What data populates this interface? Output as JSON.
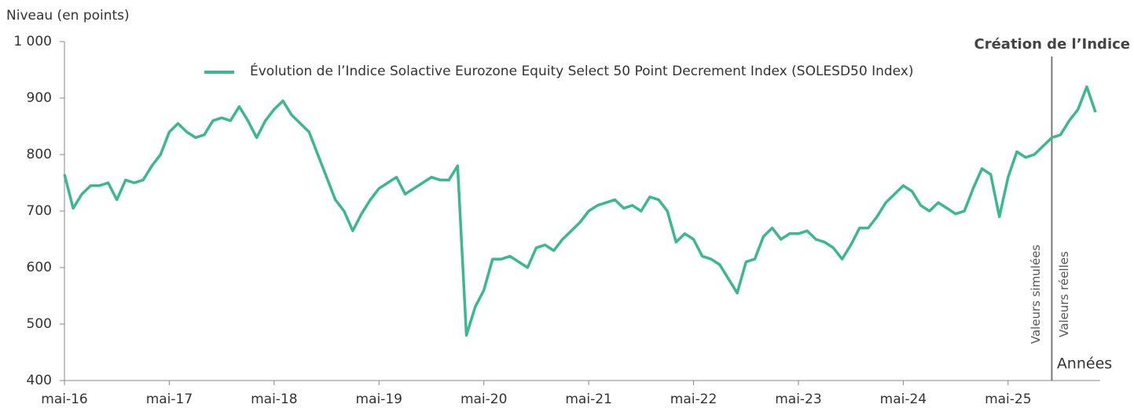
{
  "chart_data": {
    "type": "line",
    "ylabel": "Niveau (en points)",
    "xlabel": "Années",
    "ylim": [
      400,
      1000
    ],
    "yticks": [
      {
        "value": 1000,
        "label": "1 000"
      },
      900,
      800,
      700,
      600,
      500,
      400
    ],
    "xlim": [
      "2016-05",
      "2026-03"
    ],
    "xticks": [
      {
        "value": "2016-05",
        "label": "mai-16"
      },
      {
        "value": "2017-05",
        "label": "mai-17"
      },
      {
        "value": "2018-05",
        "label": "mai-18"
      },
      {
        "value": "2019-05",
        "label": "mai-19"
      },
      {
        "value": "2020-05",
        "label": "mai-20"
      },
      {
        "value": "2021-05",
        "label": "mai-21"
      },
      {
        "value": "2022-05",
        "label": "mai-22"
      },
      {
        "value": "2023-05",
        "label": "mai-23"
      },
      {
        "value": "2024-05",
        "label": "mai-24"
      },
      {
        "value": "2025-05",
        "label": "mai-25"
      }
    ],
    "annotation": {
      "x": "2025-10",
      "label": "Création de l’Indice",
      "left_label": "Valeurs simulées",
      "right_label": "Valeurs réelles"
    },
    "x": [
      "2016-05",
      "2016-06",
      "2016-07",
      "2016-08",
      "2016-09",
      "2016-10",
      "2016-11",
      "2016-12",
      "2017-01",
      "2017-02",
      "2017-03",
      "2017-04",
      "2017-05",
      "2017-06",
      "2017-07",
      "2017-08",
      "2017-09",
      "2017-10",
      "2017-11",
      "2017-12",
      "2018-01",
      "2018-02",
      "2018-03",
      "2018-04",
      "2018-05",
      "2018-06",
      "2018-07",
      "2018-08",
      "2018-09",
      "2018-10",
      "2018-11",
      "2018-12",
      "2019-01",
      "2019-02",
      "2019-03",
      "2019-04",
      "2019-05",
      "2019-06",
      "2019-07",
      "2019-08",
      "2019-09",
      "2019-10",
      "2019-11",
      "2019-12",
      "2020-01",
      "2020-02",
      "2020-03",
      "2020-04",
      "2020-05",
      "2020-06",
      "2020-07",
      "2020-08",
      "2020-09",
      "2020-10",
      "2020-11",
      "2020-12",
      "2021-01",
      "2021-02",
      "2021-03",
      "2021-04",
      "2021-05",
      "2021-06",
      "2021-07",
      "2021-08",
      "2021-09",
      "2021-10",
      "2021-11",
      "2021-12",
      "2022-01",
      "2022-02",
      "2022-03",
      "2022-04",
      "2022-05",
      "2022-06",
      "2022-07",
      "2022-08",
      "2022-09",
      "2022-10",
      "2022-11",
      "2022-12",
      "2023-01",
      "2023-02",
      "2023-03",
      "2023-04",
      "2023-05",
      "2023-06",
      "2023-07",
      "2023-08",
      "2023-09",
      "2023-10",
      "2023-11",
      "2023-12",
      "2024-01",
      "2024-02",
      "2024-03",
      "2024-04",
      "2024-05",
      "2024-06",
      "2024-07",
      "2024-08",
      "2024-09",
      "2024-10",
      "2024-11",
      "2024-12",
      "2025-01",
      "2025-02",
      "2025-03",
      "2025-04",
      "2025-05",
      "2025-06",
      "2025-07",
      "2025-08",
      "2025-09",
      "2025-10",
      "2025-11",
      "2025-12",
      "2026-01",
      "2026-02",
      "2026-03"
    ],
    "series": [
      {
        "name": "Évolution de l’Indice Solactive Eurozone Equity Select 50 Point Decrement Index (SOLESD50 Index)",
        "color": "#3bb88e",
        "values": [
          765,
          705,
          730,
          745,
          745,
          750,
          720,
          755,
          750,
          755,
          780,
          800,
          840,
          855,
          840,
          830,
          835,
          860,
          865,
          860,
          885,
          860,
          830,
          860,
          880,
          895,
          870,
          855,
          840,
          800,
          760,
          720,
          700,
          665,
          695,
          720,
          740,
          750,
          760,
          730,
          740,
          750,
          760,
          755,
          755,
          780,
          480,
          530,
          560,
          615,
          615,
          620,
          610,
          600,
          635,
          640,
          630,
          650,
          665,
          680,
          700,
          710,
          715,
          720,
          705,
          710,
          700,
          725,
          720,
          700,
          645,
          660,
          650,
          620,
          615,
          605,
          580,
          555,
          610,
          615,
          655,
          670,
          650,
          660,
          660,
          665,
          650,
          645,
          635,
          615,
          640,
          670,
          670,
          690,
          715,
          730,
          745,
          735,
          710,
          700,
          715,
          705,
          695,
          700,
          740,
          775,
          765,
          690,
          760,
          805,
          795,
          800,
          815,
          830,
          835,
          860,
          880,
          920,
          875
        ]
      }
    ]
  }
}
